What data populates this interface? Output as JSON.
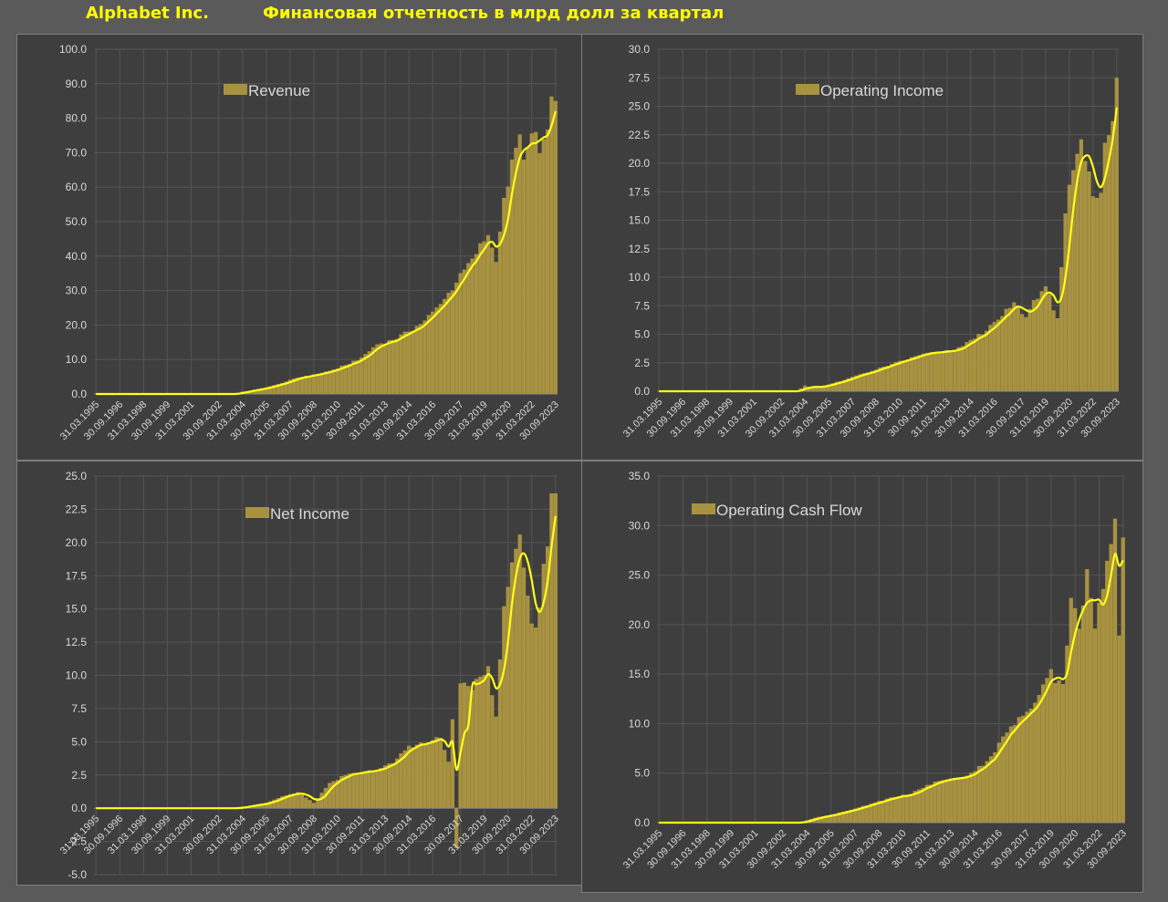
{
  "header": {
    "company": "Alphabet Inc.",
    "title": "Финансовая отчетность в млрд долл за квартал"
  },
  "style": {
    "bar_color": "#a89240",
    "line_color": "#ffff1a",
    "grid_color": "#555555",
    "axis_color": "#8a8a8a",
    "text_color": "#d9d9d9",
    "panel_background": "#3e3e3e",
    "page_background": "#5a5a5a"
  },
  "chart_data": [
    {
      "id": "revenue",
      "type": "bar",
      "legend": "Revenue",
      "legend_position": "top-center",
      "series": [
        {
          "name": "Revenue",
          "type": "bar"
        },
        {
          "type": "line",
          "smoothed": true
        }
      ],
      "x_start": "1995-Q1",
      "x_end": "2024-Q1",
      "xlabels": [
        "31.03.1995",
        "30.09.1996",
        "31.03.1998",
        "30.09.1999",
        "31.03.2001",
        "30.09.2002",
        "31.03.2004",
        "30.09.2005",
        "31.03.2007",
        "30.09.2008",
        "31.03.2010",
        "30.09.2011",
        "31.03.2013",
        "30.09.2014",
        "31.03.2016",
        "30.09.2017",
        "31.03.2019",
        "30.09.2020",
        "31.03.2022",
        "30.09.2023"
      ],
      "ylim": [
        0,
        100
      ],
      "yticks": [
        "0.0",
        "10.0",
        "20.0",
        "30.0",
        "40.0",
        "50.0",
        "60.0",
        "70.0",
        "80.0",
        "90.0",
        "100.0"
      ],
      "grid": true,
      "anchors": [
        {
          "date": "2003-Q4",
          "value": 0
        },
        {
          "date": "2004-Q2",
          "value": 0.7
        },
        {
          "date": "2004-Q4",
          "value": 1.0
        },
        {
          "date": "2005-Q4",
          "value": 1.9
        },
        {
          "date": "2006-Q4",
          "value": 3.2
        },
        {
          "date": "2007-Q4",
          "value": 4.8
        },
        {
          "date": "2008-Q4",
          "value": 5.7
        },
        {
          "date": "2009-Q4",
          "value": 6.7
        },
        {
          "date": "2010-Q4",
          "value": 8.4
        },
        {
          "date": "2011-Q4",
          "value": 10.6
        },
        {
          "date": "2012-Q4",
          "value": 14.4
        },
        {
          "date": "2013-Q4",
          "value": 15.7
        },
        {
          "date": "2014-Q4",
          "value": 18.1
        },
        {
          "date": "2015-Q4",
          "value": 21.3
        },
        {
          "date": "2016-Q4",
          "value": 26.1
        },
        {
          "date": "2017-Q4",
          "value": 32.3
        },
        {
          "date": "2018-Q4",
          "value": 39.3
        },
        {
          "date": "2019-Q4",
          "value": 46.1
        },
        {
          "date": "2020-Q2",
          "value": 38.3
        },
        {
          "date": "2020-Q4",
          "value": 56.9
        },
        {
          "date": "2021-Q4",
          "value": 75.3
        },
        {
          "date": "2022-Q1",
          "value": 68.0
        },
        {
          "date": "2022-Q4",
          "value": 76.0
        },
        {
          "date": "2023-Q1",
          "value": 69.8
        },
        {
          "date": "2023-Q3",
          "value": 76.7
        },
        {
          "date": "2023-Q4",
          "value": 86.3
        },
        {
          "date": "2024-Q1",
          "value": 85.0
        }
      ],
      "trend_end": 82.0
    },
    {
      "id": "operating-income",
      "type": "bar",
      "legend": "Operating Income",
      "legend_position": "top-center",
      "series": [
        {
          "name": "Operating Income",
          "type": "bar"
        },
        {
          "type": "line",
          "smoothed": true
        }
      ],
      "x_start": "1995-Q1",
      "x_end": "2024-Q1",
      "xlabels": [
        "31.03.1995",
        "30.09.1996",
        "31.03.1998",
        "30.09.1999",
        "31.03.2001",
        "30.09.2002",
        "31.03.2004",
        "30.09.2005",
        "31.03.2007",
        "30.09.2008",
        "31.03.2010",
        "30.09.2011",
        "31.03.2013",
        "30.09.2014",
        "31.03.2016",
        "30.09.2017",
        "31.03.2019",
        "30.09.2020",
        "31.03.2022",
        "30.09.2023"
      ],
      "ylim": [
        0,
        30
      ],
      "yticks": [
        "0.0",
        "2.5",
        "5.0",
        "7.5",
        "10.0",
        "12.5",
        "15.0",
        "17.5",
        "20.0",
        "22.5",
        "25.0",
        "27.5",
        "30.0"
      ],
      "grid": true,
      "anchors": [
        {
          "date": "2003-Q4",
          "value": 0
        },
        {
          "date": "2004-Q2",
          "value": 0.5
        },
        {
          "date": "2004-Q4",
          "value": 0.3
        },
        {
          "date": "2005-Q4",
          "value": 0.6
        },
        {
          "date": "2006-Q4",
          "value": 1.0
        },
        {
          "date": "2007-Q4",
          "value": 1.5
        },
        {
          "date": "2008-Q4",
          "value": 1.9
        },
        {
          "date": "2009-Q4",
          "value": 2.4
        },
        {
          "date": "2010-Q4",
          "value": 2.8
        },
        {
          "date": "2011-Q4",
          "value": 3.3
        },
        {
          "date": "2012-Q4",
          "value": 3.4
        },
        {
          "date": "2013-Q4",
          "value": 3.6
        },
        {
          "date": "2014-Q4",
          "value": 4.5
        },
        {
          "date": "2015-Q4",
          "value": 5.3
        },
        {
          "date": "2016-Q4",
          "value": 6.6
        },
        {
          "date": "2017-Q3",
          "value": 7.8
        },
        {
          "date": "2017-Q4",
          "value": 7.4
        },
        {
          "date": "2018-Q2",
          "value": 6.5
        },
        {
          "date": "2018-Q4",
          "value": 8.0
        },
        {
          "date": "2019-Q3",
          "value": 9.2
        },
        {
          "date": "2020-Q2",
          "value": 6.4
        },
        {
          "date": "2020-Q4",
          "value": 15.6
        },
        {
          "date": "2021-Q2",
          "value": 19.4
        },
        {
          "date": "2021-Q4",
          "value": 22.1
        },
        {
          "date": "2022-Q3",
          "value": 17.1
        },
        {
          "date": "2023-Q1",
          "value": 17.4
        },
        {
          "date": "2023-Q2",
          "value": 21.8
        },
        {
          "date": "2023-Q4",
          "value": 23.7
        },
        {
          "date": "2024-Q1",
          "value": 27.5
        }
      ],
      "trend_end": 24.9
    },
    {
      "id": "net-income",
      "type": "bar",
      "legend": "Net Income",
      "legend_position": "top-center",
      "series": [
        {
          "name": "Net Income",
          "type": "bar"
        },
        {
          "type": "line",
          "smoothed": true
        }
      ],
      "x_start": "1995-Q1",
      "x_end": "2024-Q1",
      "xlabels": [
        "31.03.1995",
        "30.09.1996",
        "31.03.1998",
        "30.09.1999",
        "31.03.2001",
        "30.09.2002",
        "31.03.2004",
        "30.09.2005",
        "31.03.2007",
        "30.09.2008",
        "31.03.2010",
        "30.09.2011",
        "31.03.2013",
        "30.09.2014",
        "31.03.2016",
        "30.09.2017",
        "31.03.2019",
        "30.09.2020",
        "31.03.2022",
        "30.09.2023"
      ],
      "ylim": [
        -5,
        25
      ],
      "yticks": [
        "-5.0",
        "-2.5",
        "0.0",
        "2.5",
        "5.0",
        "7.5",
        "10.0",
        "12.5",
        "15.0",
        "17.5",
        "20.0",
        "22.5",
        "25.0"
      ],
      "grid": true,
      "anchors": [
        {
          "date": "2003-Q4",
          "value": 0
        },
        {
          "date": "2004-Q4",
          "value": 0.2
        },
        {
          "date": "2005-Q4",
          "value": 0.4
        },
        {
          "date": "2006-Q4",
          "value": 0.9
        },
        {
          "date": "2007-Q4",
          "value": 1.2
        },
        {
          "date": "2008-Q4",
          "value": 0.4
        },
        {
          "date": "2009-Q4",
          "value": 1.9
        },
        {
          "date": "2010-Q4",
          "value": 2.5
        },
        {
          "date": "2011-Q4",
          "value": 2.7
        },
        {
          "date": "2012-Q4",
          "value": 2.9
        },
        {
          "date": "2013-Q4",
          "value": 3.4
        },
        {
          "date": "2014-Q4",
          "value": 4.7
        },
        {
          "date": "2015-Q4",
          "value": 4.9
        },
        {
          "date": "2016-Q4",
          "value": 5.3
        },
        {
          "date": "2017-Q2",
          "value": 3.5
        },
        {
          "date": "2017-Q3",
          "value": 6.7
        },
        {
          "date": "2017-Q4",
          "value": -3.0
        },
        {
          "date": "2018-Q1",
          "value": 9.4
        },
        {
          "date": "2018-Q3",
          "value": 9.2
        },
        {
          "date": "2018-Q4",
          "value": 8.9
        },
        {
          "date": "2019-Q2",
          "value": 9.9
        },
        {
          "date": "2019-Q4",
          "value": 10.7
        },
        {
          "date": "2020-Q2",
          "value": 6.9
        },
        {
          "date": "2020-Q3",
          "value": 11.2
        },
        {
          "date": "2020-Q4",
          "value": 15.2
        },
        {
          "date": "2021-Q2",
          "value": 18.5
        },
        {
          "date": "2021-Q4",
          "value": 20.6
        },
        {
          "date": "2022-Q2",
          "value": 16.0
        },
        {
          "date": "2022-Q3",
          "value": 13.9
        },
        {
          "date": "2022-Q4",
          "value": 13.6
        },
        {
          "date": "2023-Q1",
          "value": 15.1
        },
        {
          "date": "2023-Q2",
          "value": 18.4
        },
        {
          "date": "2023-Q3",
          "value": 19.7
        },
        {
          "date": "2023-Q4",
          "value": 23.7
        },
        {
          "date": "2024-Q1",
          "value": 23.7
        }
      ],
      "trend_end": 22.0
    },
    {
      "id": "operating-cash-flow",
      "type": "bar",
      "legend": "Operating Cash Flow",
      "legend_position": "top-left",
      "series": [
        {
          "name": "Operating Cash Flow",
          "type": "bar"
        },
        {
          "type": "line",
          "smoothed": true
        }
      ],
      "x_start": "1995-Q1",
      "x_end": "2024-Q1",
      "xlabels": [
        "31.03.1995",
        "30.09.1996",
        "31.03.1998",
        "30.09.1999",
        "31.03.2001",
        "30.09.2002",
        "31.03.2004",
        "30.09.2005",
        "31.03.2007",
        "30.09.2008",
        "31.03.2010",
        "30.09.2011",
        "31.03.2013",
        "30.09.2014",
        "31.03.2016",
        "30.09.2017",
        "31.03.2019",
        "30.09.2020",
        "31.03.2022",
        "30.09.2023"
      ],
      "ylim": [
        0,
        35
      ],
      "yticks": [
        "0.0",
        "5.0",
        "10.0",
        "15.0",
        "20.0",
        "25.0",
        "30.0",
        "35.0"
      ],
      "grid": true,
      "anchors": [
        {
          "date": "2003-Q4",
          "value": 0
        },
        {
          "date": "2004-Q4",
          "value": 0.5
        },
        {
          "date": "2005-Q4",
          "value": 0.8
        },
        {
          "date": "2006-Q4",
          "value": 1.2
        },
        {
          "date": "2007-Q4",
          "value": 1.7
        },
        {
          "date": "2008-Q4",
          "value": 2.2
        },
        {
          "date": "2009-Q4",
          "value": 2.6
        },
        {
          "date": "2010-Q4",
          "value": 2.9
        },
        {
          "date": "2011-Q4",
          "value": 3.8
        },
        {
          "date": "2012-Q4",
          "value": 4.3
        },
        {
          "date": "2013-Q4",
          "value": 4.5
        },
        {
          "date": "2014-Q4",
          "value": 5.2
        },
        {
          "date": "2015-Q4",
          "value": 6.7
        },
        {
          "date": "2016-Q4",
          "value": 9.1
        },
        {
          "date": "2017-Q4",
          "value": 10.8
        },
        {
          "date": "2018-Q4",
          "value": 12.9
        },
        {
          "date": "2019-Q3",
          "value": 15.5
        },
        {
          "date": "2019-Q4",
          "value": 14.1
        },
        {
          "date": "2020-Q2",
          "value": 14.0
        },
        {
          "date": "2020-Q4",
          "value": 22.7
        },
        {
          "date": "2021-Q2",
          "value": 19.6
        },
        {
          "date": "2021-Q4",
          "value": 25.6
        },
        {
          "date": "2022-Q2",
          "value": 19.6
        },
        {
          "date": "2022-Q4",
          "value": 23.6
        },
        {
          "date": "2023-Q3",
          "value": 30.7
        },
        {
          "date": "2023-Q4",
          "value": 18.9
        },
        {
          "date": "2024-Q1",
          "value": 28.8
        }
      ],
      "trend_end": 26.5
    }
  ]
}
